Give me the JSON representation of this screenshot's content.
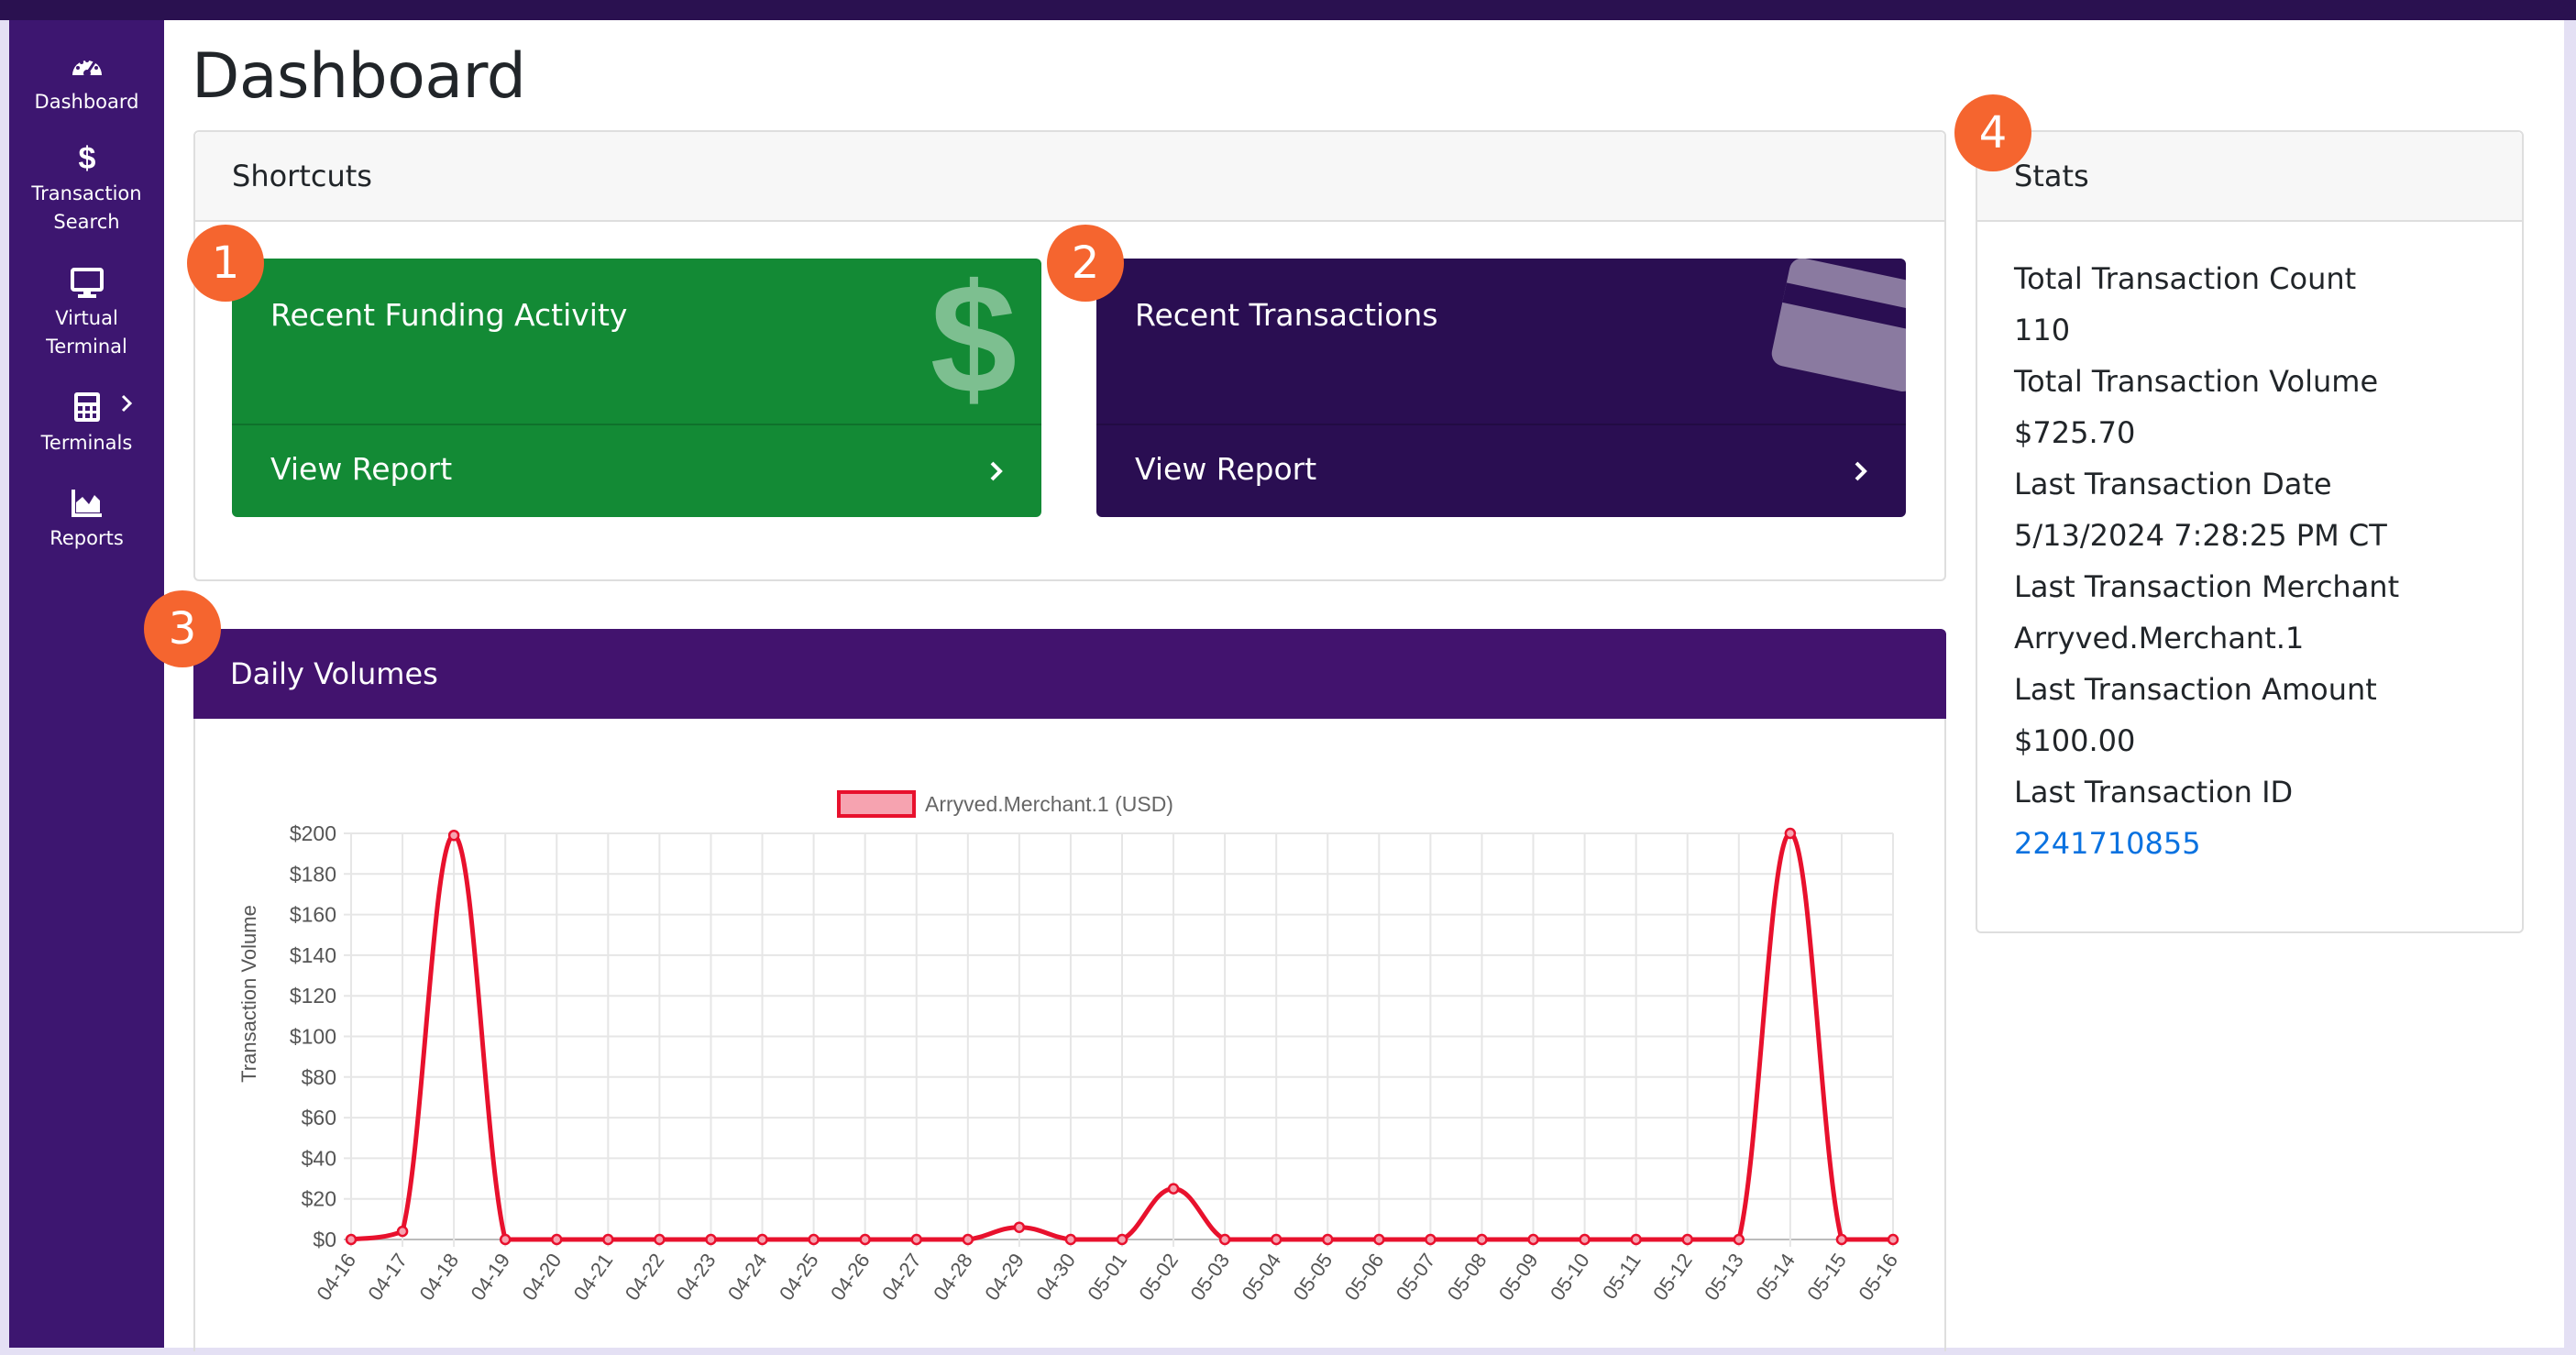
{
  "sidebar": {
    "items": [
      {
        "label": "Dashboard",
        "icon": "gauge-icon"
      },
      {
        "label_line1": "Transaction",
        "label_line2": "Search",
        "icon": "dollar-icon"
      },
      {
        "label_line1": "Virtual",
        "label_line2": "Terminal",
        "icon": "monitor-icon"
      },
      {
        "label": "Terminals",
        "icon": "calculator-icon"
      },
      {
        "label": "Reports",
        "icon": "area-chart-icon"
      }
    ]
  },
  "page": {
    "title": "Dashboard"
  },
  "shortcuts": {
    "title": "Shortcuts",
    "items": [
      {
        "title": "Recent Funding Activity",
        "link": "View Report",
        "icon": "dollar-sign-icon",
        "color": "#138a35"
      },
      {
        "title": "Recent Transactions",
        "link": "View Report",
        "icon": "credit-card-icon",
        "color": "#2a0e52"
      }
    ]
  },
  "badges": [
    "1",
    "2",
    "3",
    "4"
  ],
  "daily_volumes": {
    "title": "Daily Volumes"
  },
  "stats": {
    "title": "Stats",
    "rows": [
      "Total Transaction Count",
      "110",
      "Total Transaction Volume",
      "$725.70",
      "Last Transaction Date",
      "5/13/2024 7:28:25 PM CT",
      "Last Transaction Merchant",
      "Arryved.Merchant.1",
      "Last Transaction Amount",
      "$100.00",
      "Last Transaction ID"
    ],
    "transaction_id": "2241710855"
  },
  "colors": {
    "accent": "#3d1670",
    "badge": "#f5652f",
    "line": "#e8112d",
    "link": "#0a72e0"
  },
  "chart_data": {
    "type": "line",
    "ylabel": "Transaction Volume",
    "xlabel": "",
    "ylim": [
      0,
      200
    ],
    "yticks": [
      "$0",
      "$20",
      "$40",
      "$60",
      "$80",
      "$100",
      "$120",
      "$140",
      "$160",
      "$180",
      "$200"
    ],
    "legend_position": "top",
    "grid": true,
    "x": [
      "04-16",
      "04-17",
      "04-18",
      "04-19",
      "04-20",
      "04-21",
      "04-22",
      "04-23",
      "04-24",
      "04-25",
      "04-26",
      "04-27",
      "04-28",
      "04-29",
      "04-30",
      "05-01",
      "05-02",
      "05-03",
      "05-04",
      "05-05",
      "05-06",
      "05-07",
      "05-08",
      "05-09",
      "05-10",
      "05-11",
      "05-12",
      "05-13",
      "05-14",
      "05-15",
      "05-16"
    ],
    "series": [
      {
        "name": "Arryved.Merchant.1 (USD)",
        "values": [
          0,
          4,
          199,
          0,
          0,
          0,
          0,
          0,
          0,
          0,
          0,
          0,
          0,
          6,
          0,
          0,
          25,
          0,
          0,
          0,
          0,
          0,
          0,
          0,
          0,
          0,
          0,
          0,
          200,
          0,
          0
        ]
      }
    ]
  }
}
